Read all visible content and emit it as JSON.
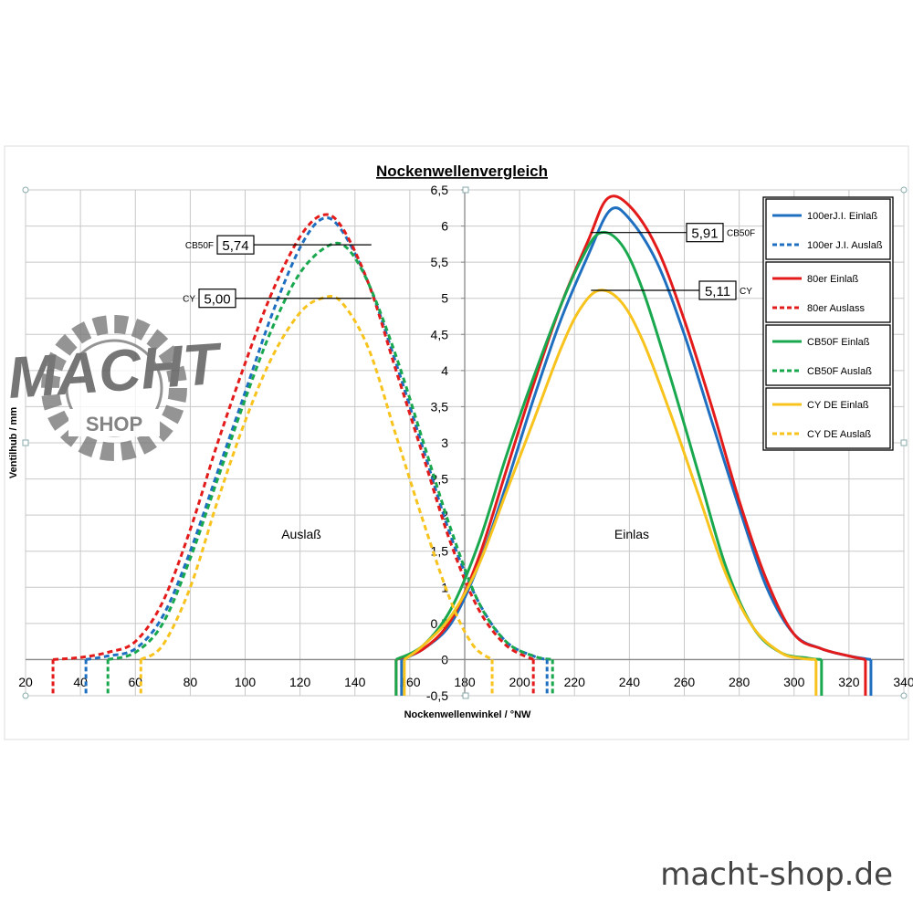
{
  "footer": {
    "site": "macht-shop.de"
  },
  "logo": {
    "text": "MACHT",
    "subtext": "SHOP"
  },
  "chart_data": {
    "type": "line",
    "title": "Nockenwellenvergleich",
    "xlabel": "Nockenwellenwinkel / °NW",
    "ylabel": "Ventilhub / mm",
    "xlim": [
      20,
      340
    ],
    "ylim": [
      -0.5,
      6.5
    ],
    "x_ticks": [
      "20",
      "40",
      "60",
      "80",
      "100",
      "120",
      "140",
      "160",
      "180",
      "200",
      "220",
      "240",
      "260",
      "280",
      "300",
      "320",
      "340"
    ],
    "y_ticks": [
      "-0,5",
      "0",
      "0,5",
      "1",
      "1,5",
      "2",
      "2,5",
      "3",
      "3,5",
      "4",
      "4,5",
      "5",
      "5,5",
      "6",
      "6,5"
    ],
    "grid": true,
    "legend_position": "right",
    "region_labels": {
      "exhaust": "Auslaß",
      "intake": "Einlas"
    },
    "series": [
      {
        "name": "100erJ.I. Einlaß",
        "color": "#1f6fc0",
        "dash": false,
        "x": [
          157,
          165,
          175,
          185,
          195,
          205,
          215,
          225,
          233,
          240,
          250,
          260,
          270,
          280,
          290,
          300,
          310,
          320,
          328
        ],
        "values": [
          0,
          0.15,
          0.5,
          1.3,
          2.4,
          3.6,
          4.7,
          5.6,
          6.22,
          6.1,
          5.5,
          4.5,
          3.3,
          2.1,
          1.0,
          0.35,
          0.15,
          0.05,
          0
        ]
      },
      {
        "name": "100er J.I. Auslaß",
        "color": "#1f6fc0",
        "dash": true,
        "x": [
          42,
          50,
          60,
          70,
          80,
          90,
          100,
          110,
          120,
          128,
          135,
          145,
          155,
          165,
          175,
          185,
          195,
          205,
          210
        ],
        "values": [
          0,
          0.05,
          0.15,
          0.6,
          1.5,
          2.6,
          3.7,
          4.8,
          5.7,
          6.1,
          5.95,
          5.2,
          4.1,
          2.9,
          1.7,
          0.8,
          0.25,
          0.05,
          0
        ]
      },
      {
        "name": "80er Einlaß",
        "color": "#e31b1b",
        "dash": false,
        "x": [
          155,
          165,
          175,
          185,
          195,
          205,
          215,
          225,
          232,
          240,
          250,
          260,
          270,
          280,
          290,
          300,
          310,
          320,
          326
        ],
        "values": [
          0,
          0.15,
          0.55,
          1.4,
          2.6,
          3.8,
          4.9,
          5.8,
          6.38,
          6.28,
          5.7,
          4.7,
          3.5,
          2.2,
          1.1,
          0.35,
          0.15,
          0.05,
          0
        ]
      },
      {
        "name": "80er Auslass",
        "color": "#e31b1b",
        "dash": true,
        "x": [
          30,
          40,
          50,
          60,
          70,
          80,
          90,
          100,
          110,
          120,
          128,
          135,
          145,
          155,
          165,
          175,
          185,
          195,
          205
        ],
        "values": [
          0,
          0.03,
          0.1,
          0.25,
          0.8,
          1.8,
          3.0,
          4.1,
          5.1,
          5.85,
          6.15,
          6.0,
          5.2,
          4.0,
          2.8,
          1.6,
          0.7,
          0.2,
          0
        ]
      },
      {
        "name": "CB50F Einlaß",
        "color": "#1aa84f",
        "dash": false,
        "x": [
          155,
          165,
          175,
          185,
          195,
          205,
          215,
          222,
          229,
          237,
          245,
          255,
          265,
          275,
          285,
          295,
          305,
          310
        ],
        "values": [
          0,
          0.2,
          0.7,
          1.6,
          2.8,
          3.9,
          4.9,
          5.5,
          5.9,
          5.75,
          5.1,
          3.9,
          2.6,
          1.3,
          0.45,
          0.1,
          0.02,
          0
        ]
      },
      {
        "name": "CB50F Auslaß",
        "color": "#1aa84f",
        "dash": true,
        "x": [
          50,
          60,
          70,
          80,
          90,
          100,
          110,
          120,
          130,
          137,
          145,
          155,
          165,
          175,
          185,
          195,
          205,
          212
        ],
        "values": [
          0,
          0.1,
          0.5,
          1.4,
          2.5,
          3.6,
          4.6,
          5.35,
          5.72,
          5.7,
          5.2,
          4.2,
          3.0,
          1.8,
          0.8,
          0.25,
          0.05,
          0
        ]
      },
      {
        "name": "CY DE Einlaß",
        "color": "#f7c31c",
        "dash": false,
        "x": [
          158,
          165,
          175,
          185,
          195,
          205,
          215,
          222,
          229,
          237,
          245,
          255,
          265,
          275,
          285,
          295,
          302,
          308
        ],
        "values": [
          0,
          0.2,
          0.6,
          1.3,
          2.3,
          3.3,
          4.3,
          4.85,
          5.11,
          4.95,
          4.4,
          3.4,
          2.3,
          1.2,
          0.45,
          0.1,
          0.02,
          0
        ]
      },
      {
        "name": "CY DE Auslaß",
        "color": "#f7c31c",
        "dash": true,
        "x": [
          62,
          70,
          80,
          90,
          100,
          110,
          120,
          128,
          135,
          145,
          155,
          165,
          175,
          183,
          190
        ],
        "values": [
          0,
          0.2,
          1.0,
          2.2,
          3.3,
          4.2,
          4.8,
          5.0,
          4.95,
          4.3,
          3.1,
          1.9,
          0.8,
          0.2,
          0
        ]
      }
    ],
    "annotations": [
      {
        "label": "CB50F",
        "value": "5,74",
        "side": "exhaust",
        "x": 138,
        "y": 5.74
      },
      {
        "label": "CY",
        "value": "5,00",
        "side": "exhaust",
        "x": 138,
        "y": 5.0
      },
      {
        "label": "CB50F",
        "value": "5,91",
        "side": "intake",
        "x": 229,
        "y": 5.91
      },
      {
        "label": "CY",
        "value": "5,11",
        "side": "intake",
        "x": 229,
        "y": 5.11
      }
    ]
  }
}
